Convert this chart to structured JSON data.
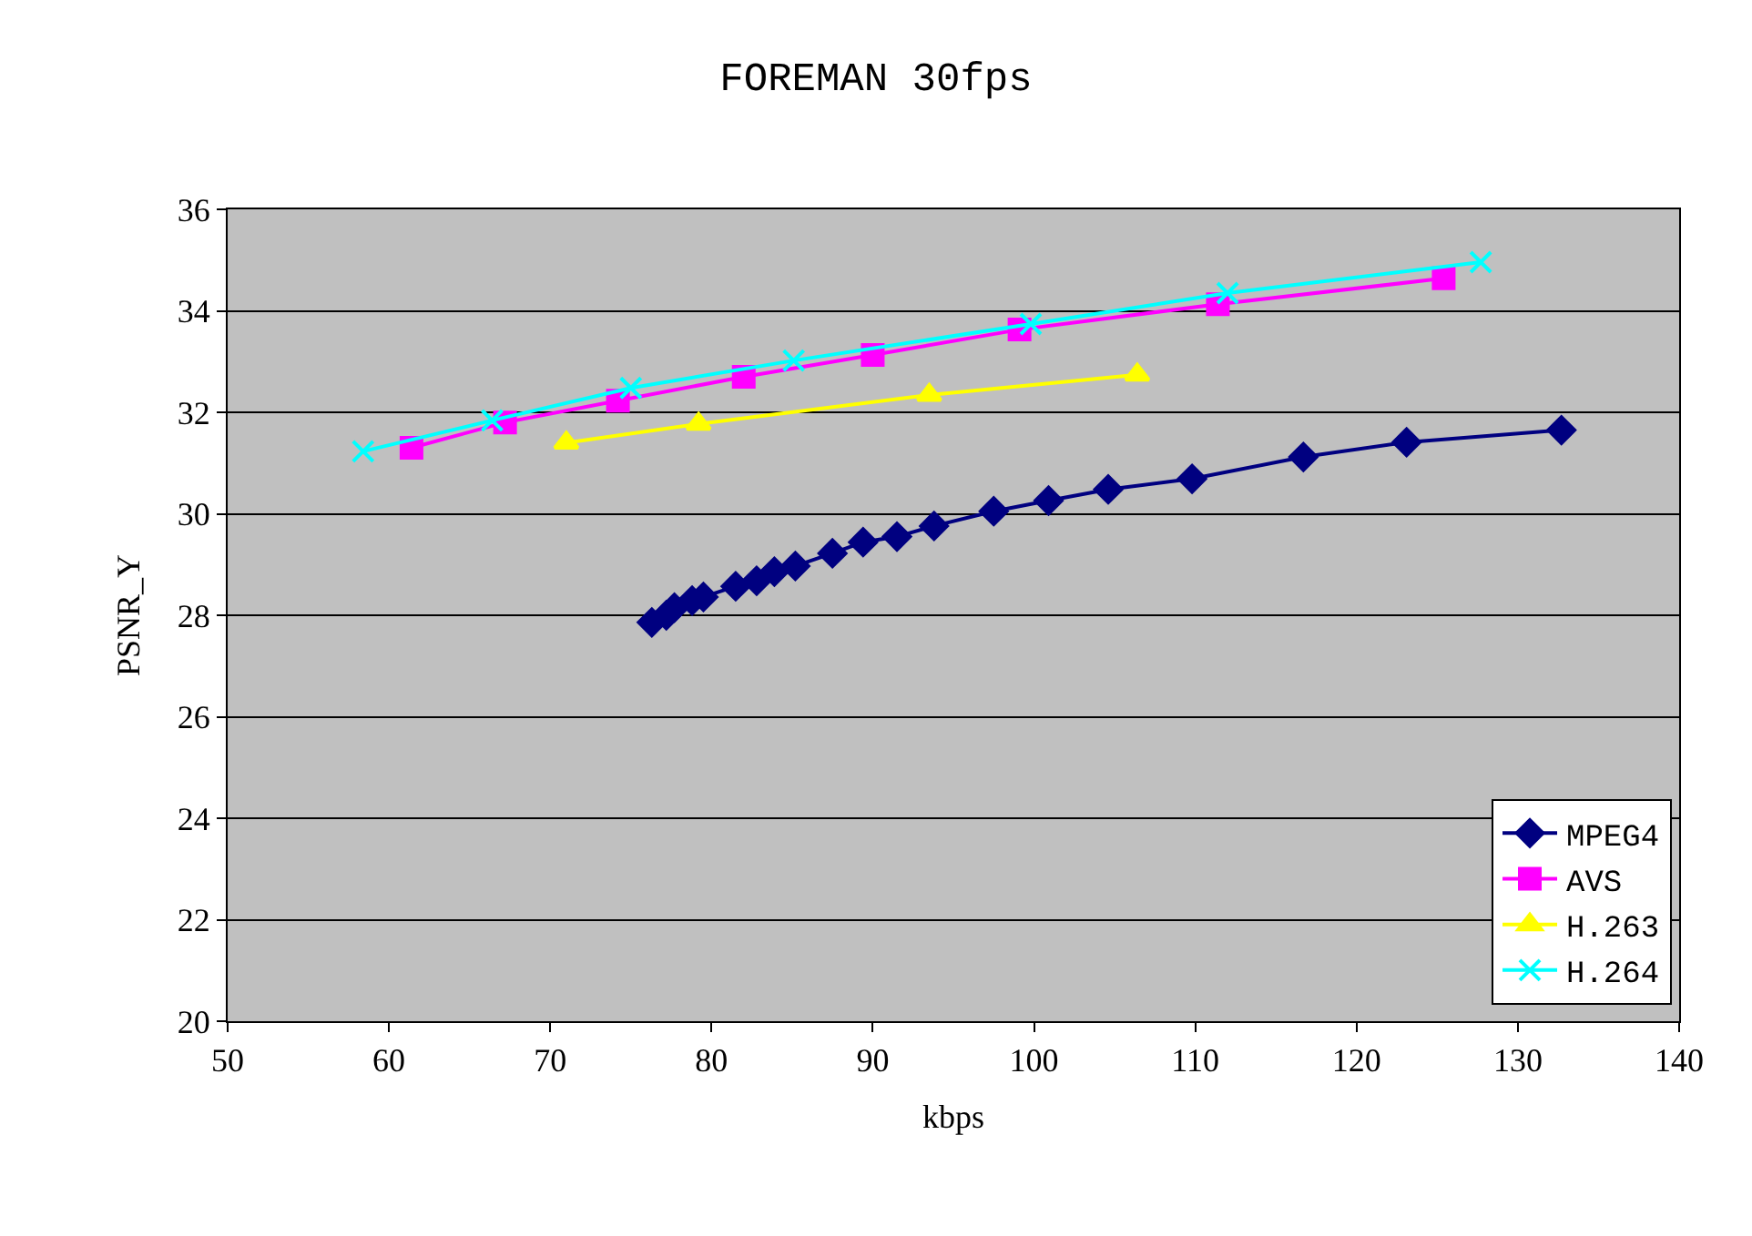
{
  "chart_data": {
    "type": "line",
    "title": "FOREMAN 30fps",
    "xlabel": "kbps",
    "ylabel": "PSNR_Y",
    "xlim": [
      50,
      140
    ],
    "xticks": [
      50,
      60,
      70,
      80,
      90,
      100,
      110,
      120,
      130,
      140
    ],
    "ylim": [
      20,
      36
    ],
    "yticks": [
      20,
      22,
      24,
      26,
      28,
      30,
      32,
      34,
      36
    ],
    "grid": "y",
    "legend": "bottom right",
    "series": [
      {
        "name": "MPEG4",
        "color": "#000080",
        "marker": "diamond",
        "x": [
          76.3,
          77.2,
          77.7,
          78.8,
          79.5,
          81.5,
          82.8,
          83.9,
          85.2,
          87.5,
          89.4,
          91.5,
          93.8,
          97.5,
          100.9,
          104.6,
          109.8,
          116.7,
          123.1,
          132.7
        ],
        "values": [
          27.86,
          28.0,
          28.15,
          28.29,
          28.36,
          28.57,
          28.68,
          28.86,
          28.97,
          29.22,
          29.44,
          29.55,
          29.76,
          30.05,
          30.26,
          30.48,
          30.69,
          31.12,
          31.41,
          31.65
        ]
      },
      {
        "name": "AVS",
        "color": "#ff00ff",
        "marker": "square",
        "x": [
          61.4,
          67.2,
          74.2,
          82.0,
          90.0,
          99.1,
          111.4,
          125.4
        ],
        "values": [
          31.3,
          31.8,
          32.23,
          32.7,
          33.13,
          33.63,
          34.13,
          34.64
        ]
      },
      {
        "name": "H.263",
        "color": "#ffff00",
        "marker": "triangle",
        "x": [
          71.0,
          79.2,
          93.5,
          106.4
        ],
        "values": [
          31.4,
          31.77,
          32.34,
          32.74
        ]
      },
      {
        "name": "H.264",
        "color": "#00ffff",
        "marker": "cross",
        "x": [
          58.4,
          66.4,
          75.0,
          85.1,
          99.8,
          112.0,
          127.7
        ],
        "values": [
          31.23,
          31.84,
          32.48,
          33.02,
          33.74,
          34.35,
          34.96
        ]
      }
    ]
  }
}
